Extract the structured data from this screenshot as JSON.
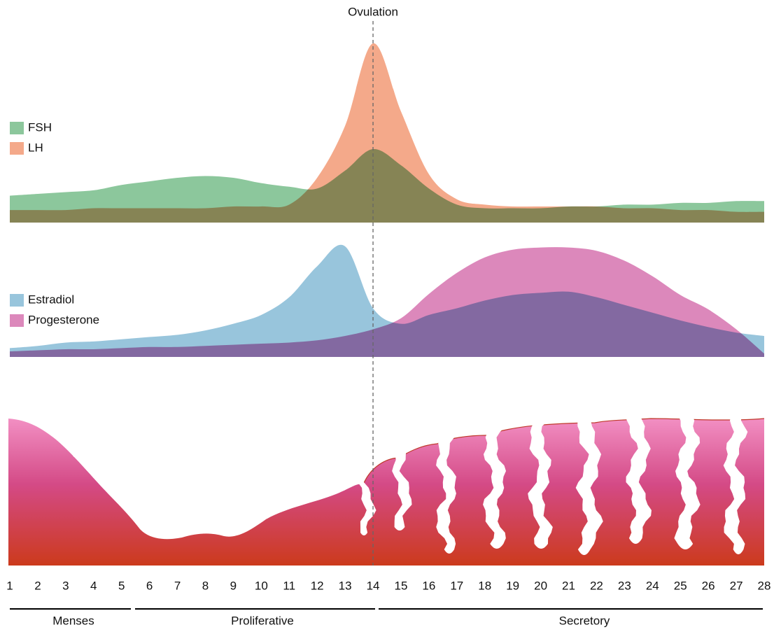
{
  "chart_data": [
    {
      "type": "area",
      "x": [
        1,
        2,
        3,
        4,
        5,
        6,
        7,
        8,
        9,
        10,
        11,
        12,
        13,
        14,
        15,
        16,
        17,
        18,
        19,
        20,
        21,
        22,
        23,
        24,
        25,
        26,
        27,
        28
      ],
      "ylim": [
        0,
        100
      ],
      "series": [
        {
          "name": "FSH",
          "color": "#8cc79c",
          "values": [
            15,
            16,
            17,
            18,
            21,
            23,
            25,
            26,
            25,
            22,
            20,
            19,
            29,
            41,
            32,
            19,
            10,
            8,
            8,
            8,
            9,
            9,
            10,
            10,
            11,
            11,
            12,
            12
          ]
        },
        {
          "name": "LH",
          "color": "#f4a98a",
          "values": [
            7,
            7,
            7,
            8,
            8,
            8,
            8,
            8,
            9,
            9,
            10,
            25,
            54,
            100,
            62,
            27,
            13,
            10,
            9,
            9,
            9,
            9,
            8,
            8,
            7,
            7,
            6,
            6
          ]
        }
      ]
    },
    {
      "type": "area",
      "x": [
        1,
        2,
        3,
        4,
        5,
        6,
        7,
        8,
        9,
        10,
        11,
        12,
        13,
        14,
        15,
        16,
        17,
        18,
        19,
        20,
        21,
        22,
        23,
        24,
        25,
        26,
        27,
        28
      ],
      "ylim": [
        0,
        100
      ],
      "series": [
        {
          "name": "Estradiol",
          "color": "#98c5dc",
          "values": [
            8,
            10,
            13,
            14,
            16,
            18,
            20,
            24,
            30,
            38,
            54,
            82,
            100,
            44,
            30,
            38,
            44,
            51,
            56,
            58,
            59,
            54,
            47,
            40,
            33,
            27,
            22,
            19
          ]
        },
        {
          "name": "Progesterone",
          "color": "#dc88bb",
          "values": [
            5,
            6,
            7,
            7,
            8,
            9,
            9,
            10,
            11,
            12,
            13,
            15,
            19,
            25,
            35,
            57,
            76,
            90,
            97,
            99,
            99,
            96,
            87,
            73,
            56,
            43,
            25,
            3
          ]
        }
      ]
    }
  ],
  "xaxis": {
    "ticks": [
      1,
      2,
      3,
      4,
      5,
      6,
      7,
      8,
      9,
      10,
      11,
      12,
      13,
      14,
      15,
      16,
      17,
      18,
      19,
      20,
      21,
      22,
      23,
      24,
      25,
      26,
      27,
      28
    ]
  },
  "annotation": {
    "label": "Ovulation",
    "x": 14
  },
  "phases": [
    "Menses",
    "Proliferative",
    "Secretory"
  ]
}
